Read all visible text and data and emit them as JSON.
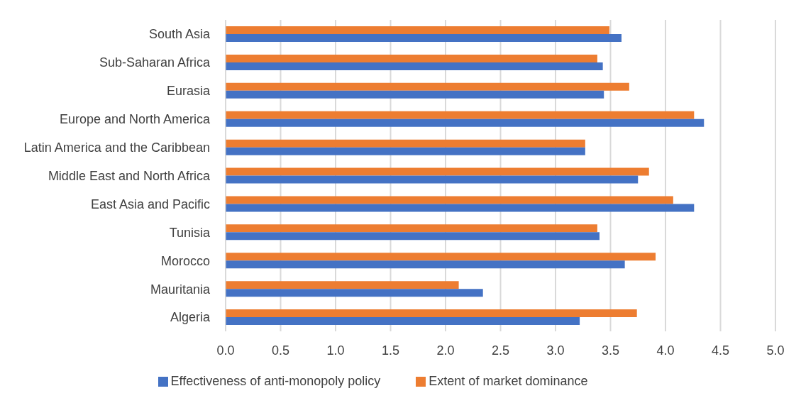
{
  "chart_data": {
    "type": "bar",
    "orientation": "horizontal",
    "categories": [
      "South Asia",
      "Sub-Saharan Africa",
      "Eurasia",
      "Europe and North America",
      "Latin America and the Caribbean",
      "Middle East and North Africa",
      "East Asia and Pacific",
      "Tunisia",
      "Morocco",
      "Mauritania",
      "Algeria"
    ],
    "series": [
      {
        "name": "Extent of market dominance",
        "color": "#ed7d31",
        "values": [
          3.49,
          3.38,
          3.67,
          4.26,
          3.27,
          3.85,
          4.07,
          3.38,
          3.91,
          2.12,
          3.74
        ]
      },
      {
        "name": "Effectiveness of anti-monopoly policy",
        "color": "#4472c4",
        "values": [
          3.6,
          3.43,
          3.44,
          4.35,
          3.27,
          3.75,
          4.26,
          3.4,
          3.63,
          2.34,
          3.22
        ]
      }
    ],
    "xlim": [
      0,
      5
    ],
    "xticks": [
      {
        "value": 0,
        "label": "0.0"
      },
      {
        "value": 0.5,
        "label": "0.5"
      },
      {
        "value": 1,
        "label": "1.0"
      },
      {
        "value": 1.5,
        "label": "1.5"
      },
      {
        "value": 2,
        "label": "2.0"
      },
      {
        "value": 2.5,
        "label": "2.5"
      },
      {
        "value": 3,
        "label": "3.0"
      },
      {
        "value": 3.5,
        "label": "3.5"
      },
      {
        "value": 4,
        "label": "4.0"
      },
      {
        "value": 4.5,
        "label": "4.5"
      },
      {
        "value": 5,
        "label": "5.0"
      }
    ],
    "grid": "x",
    "legend": "bottom"
  }
}
